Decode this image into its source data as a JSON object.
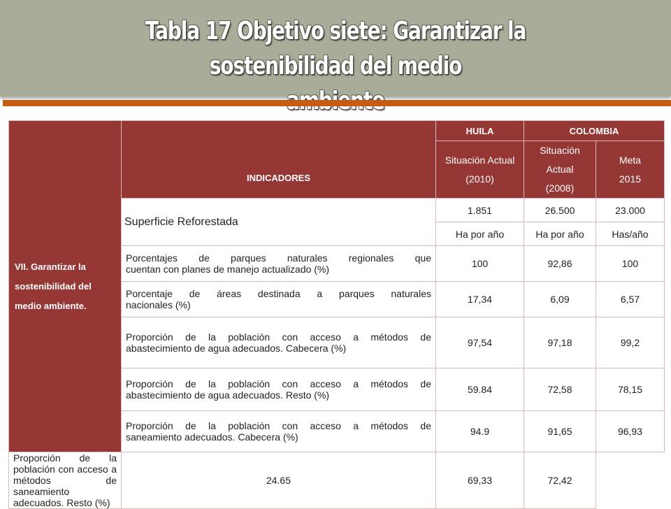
{
  "title": {
    "line1": "Tabla 17 Objetivo siete: Garantizar la sostenibilidad del medio",
    "line2": "ambiente"
  },
  "colors": {
    "title_bg": "#a8ad9a",
    "accent": "#c55a11",
    "header_red": "#953735"
  },
  "table": {
    "goal": [
      "VII. Garantizar la",
      "sostenibilidad del",
      "medio ambiente."
    ],
    "indicators_header": "INDICADORES",
    "region_huila": "HUILA",
    "region_colombia": "COLOMBIA",
    "col_huila_lines": [
      "Situación Actual",
      "(2010)"
    ],
    "col_col_actual_lines": [
      "Situación",
      "Actual",
      "(2008)"
    ],
    "col_col_meta_lines": [
      "Meta",
      "2015"
    ],
    "rows": [
      {
        "indicator": "Superficie Reforestada",
        "huila": "1.851",
        "colombia_actual": "26.500",
        "colombia_meta": "23.000",
        "units": {
          "huila": "Ha por año",
          "colombia_actual": "Ha por año",
          "colombia_meta": "Has/año"
        }
      },
      {
        "indicator_lines": [
          "Porcentajes de parques naturales regionales que",
          "cuentan con planes de manejo actualizado (%)"
        ],
        "huila": "100",
        "colombia_actual": "92,86",
        "colombia_meta": "100"
      },
      {
        "indicator_lines": [
          "Porcentaje de áreas destinada a parques naturales",
          "nacionales (%)"
        ],
        "huila": "17,34",
        "colombia_actual": "6,09",
        "colombia_meta": "6,57"
      },
      {
        "indicator_lines": [
          "Proporción de la población con acceso a métodos de",
          "abastecimiento de agua adecuados. Cabecera (%)"
        ],
        "huila": "97,54",
        "colombia_actual": "97,18",
        "colombia_meta": "99,2"
      },
      {
        "indicator_lines": [
          "Proporción de la población con acceso a métodos de",
          "abastecimiento de agua adecuados. Resto (%)"
        ],
        "huila": "59.84",
        "colombia_actual": "72,58",
        "colombia_meta": "78,15"
      },
      {
        "indicator_lines": [
          "Proporción de la población con acceso a métodos de",
          "saneamiento adecuados. Cabecera (%)"
        ],
        "huila": "94.9",
        "colombia_actual": "91,65",
        "colombia_meta": "96,93"
      },
      {
        "indicator_lines": [
          "Proporción de la población con acceso a métodos de",
          "saneamiento adecuados. Resto (%)"
        ],
        "huila": "24.65",
        "colombia_actual": "69,33",
        "colombia_meta": "72,42"
      }
    ]
  }
}
